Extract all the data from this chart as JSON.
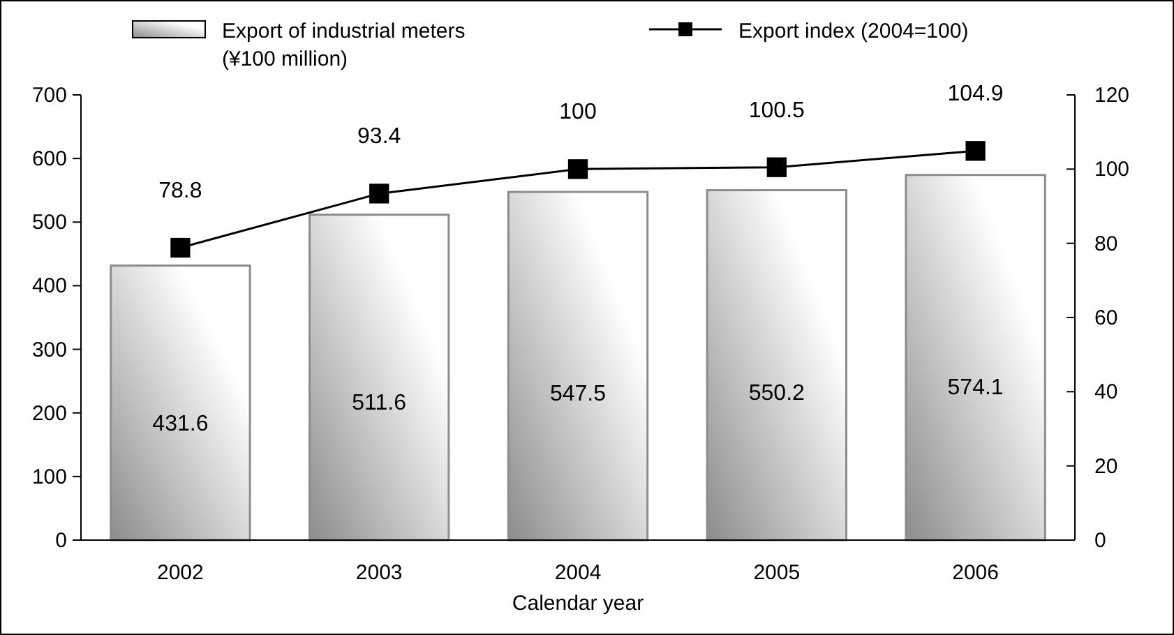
{
  "chart_data": {
    "type": "bar",
    "categories": [
      "2002",
      "2003",
      "2004",
      "2005",
      "2006"
    ],
    "xlabel": "Calendar year",
    "series": [
      {
        "name": "Export of industrial meters\n(¥100 million)",
        "color": "#8c8c8c",
        "values": [
          431.6,
          511.6,
          547.5,
          550.2,
          574.1
        ]
      },
      {
        "name": "Export index (2004=100)",
        "type": "line",
        "axis": "y2",
        "color": "#000000",
        "values": [
          78.8,
          93.4,
          100,
          100.5,
          104.9
        ]
      }
    ],
    "ylim": [
      0,
      700
    ],
    "yticks": [
      0,
      100,
      200,
      300,
      400,
      500,
      600,
      700
    ],
    "y2lim": [
      0,
      120
    ],
    "y2ticks": [
      0,
      20,
      40,
      60,
      80,
      100,
      120
    ],
    "data_labels": true,
    "legend": "top",
    "marker": "square",
    "grid": false
  }
}
